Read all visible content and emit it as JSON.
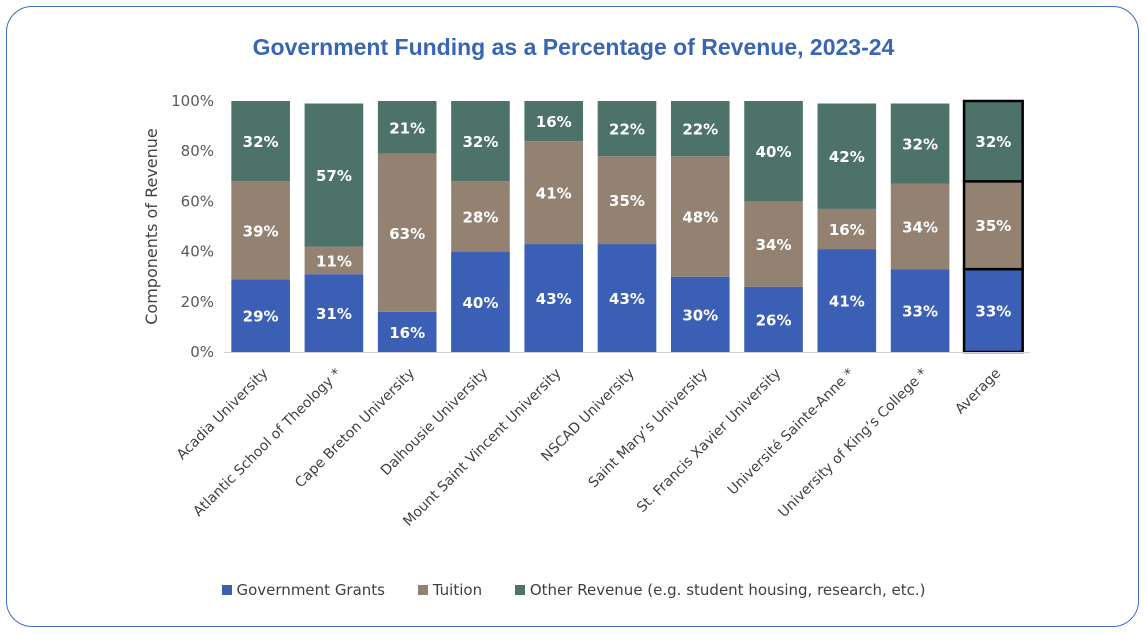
{
  "chart_data": {
    "type": "bar",
    "stacked": true,
    "title": "Government Funding as a Percentage of Revenue, 2023-24",
    "ylabel": "Components of Revenue",
    "ylim": [
      0,
      100
    ],
    "yticks": [
      "0%",
      "20%",
      "40%",
      "60%",
      "80%",
      "100%"
    ],
    "categories": [
      "Acadia University",
      "Atlantic School of Theology *",
      "Cape Breton University",
      "Dalhousie University",
      "Mount Saint Vincent University",
      "NSCAD University",
      "Saint Mary’s University",
      "St. Francis Xavier University",
      "Université Sainte-Anne *",
      "University of King’s College *",
      "Average"
    ],
    "highlight_category": "Average",
    "series": [
      {
        "name": "Government Grants",
        "color": "#3a5fb4",
        "values": [
          29,
          31,
          16,
          40,
          43,
          43,
          30,
          26,
          41,
          33,
          33
        ],
        "labels": [
          "29%",
          "31%",
          "16%",
          "40%",
          "43%",
          "43%",
          "30%",
          "26%",
          "41%",
          "33%",
          "33%"
        ]
      },
      {
        "name": "Tuition",
        "color": "#938272",
        "values": [
          39,
          11,
          63,
          28,
          41,
          35,
          48,
          34,
          16,
          34,
          35
        ],
        "labels": [
          "39%",
          "11%",
          "63%",
          "28%",
          "41%",
          "35%",
          "48%",
          "34%",
          "16%",
          "34%",
          "35%"
        ]
      },
      {
        "name": "Other Revenue (e.g. student housing, research, etc.)",
        "color": "#4d7269",
        "values": [
          32,
          57,
          21,
          32,
          16,
          22,
          22,
          40,
          42,
          32,
          32
        ],
        "labels": [
          "32%",
          "57%",
          "21%",
          "32%",
          "16%",
          "22%",
          "22%",
          "40%",
          "42%",
          "32%",
          "32%"
        ]
      }
    ],
    "legend_position": "bottom",
    "grid": false
  }
}
